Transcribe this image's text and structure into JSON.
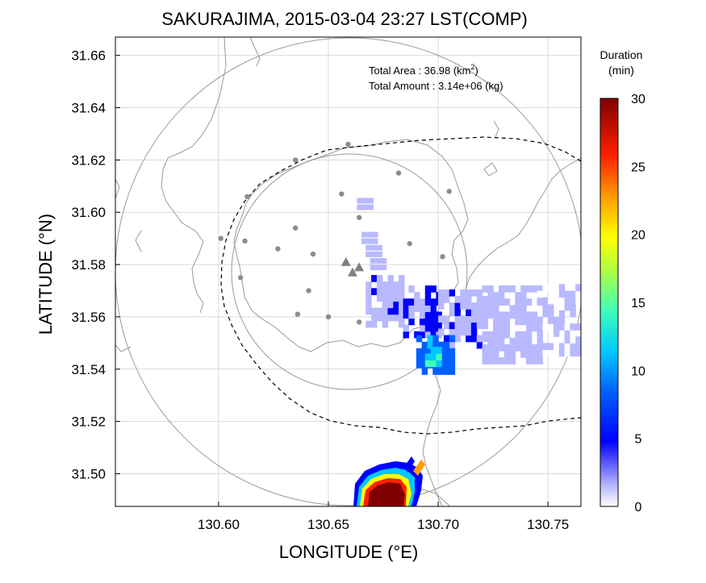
{
  "title": "SAKURAJIMA, 2015-03-04 23:27 LST(COMP)",
  "xlabel": "LONGITUDE (°E)",
  "ylabel": "LATITUDE (°N)",
  "annotation": {
    "area_label": "Total Area   : ",
    "area_value": "36.98",
    "area_unit_pre": " (km",
    "area_unit_sup": "2",
    "area_unit_post": ")",
    "amount_label": "Total Amount : ",
    "amount_value": "3.14e+06",
    "amount_unit": " (kg)"
  },
  "colorbar": {
    "title_line1": "Duration",
    "title_line2": "(min)",
    "min": 0,
    "max": 30,
    "ticks": [
      "0",
      "5",
      "10",
      "15",
      "20",
      "25",
      "30"
    ]
  },
  "colors": {
    "grid": "#d9d9d9",
    "coast": "#9a9a9a",
    "range_ring": "#9a9a9a",
    "station": "#8c8c8c"
  },
  "chart_data": {
    "type": "heatmap",
    "xlim": [
      130.553,
      130.765
    ],
    "ylim": [
      31.4875,
      31.667
    ],
    "x_ticks": [
      "130.60",
      "130.65",
      "130.70",
      "130.75"
    ],
    "x_tick_values": [
      130.6,
      130.65,
      130.7,
      130.75
    ],
    "y_ticks": [
      "31.50",
      "31.52",
      "31.54",
      "31.56",
      "31.58",
      "31.60",
      "31.62",
      "31.64",
      "31.66"
    ],
    "y_tick_values": [
      31.5,
      31.52,
      31.54,
      31.56,
      31.58,
      31.6,
      31.62,
      31.64,
      31.66
    ],
    "grid": true,
    "vents": [
      [
        130.658,
        31.581
      ],
      [
        130.661,
        31.577
      ],
      [
        130.664,
        31.579
      ]
    ],
    "stations": [
      [
        130.659,
        31.626
      ],
      [
        130.682,
        31.615
      ],
      [
        130.705,
        31.608
      ],
      [
        130.635,
        31.62
      ],
      [
        130.613,
        31.606
      ],
      [
        130.656,
        31.607
      ],
      [
        130.664,
        31.598
      ],
      [
        130.601,
        31.59
      ],
      [
        130.612,
        31.589
      ],
      [
        130.687,
        31.588
      ],
      [
        130.702,
        31.583
      ],
      [
        130.627,
        31.586
      ],
      [
        130.635,
        31.594
      ],
      [
        130.643,
        31.584
      ],
      [
        130.61,
        31.575
      ],
      [
        130.641,
        31.57
      ],
      [
        130.636,
        31.561
      ],
      [
        130.65,
        31.56
      ],
      [
        130.664,
        31.558
      ]
    ],
    "plume_cells_note": "duration in minutes per radar cell",
    "plume": [
      {
        "lon": [
          130.667,
          130.684
        ],
        "lat": [
          31.556,
          31.575
        ],
        "value": 4
      },
      {
        "lon": [
          130.684,
          130.7
        ],
        "lat": [
          31.552,
          31.571
        ],
        "value": 5
      },
      {
        "lon": [
          130.7,
          130.72
        ],
        "lat": [
          31.548,
          31.57
        ],
        "value": 4
      },
      {
        "lon": [
          130.72,
          130.745
        ],
        "lat": [
          31.542,
          31.571
        ],
        "value": 3
      },
      {
        "lon": [
          130.745,
          130.765
        ],
        "lat": [
          31.545,
          31.572
        ],
        "value": 2
      },
      {
        "lon": [
          130.69,
          130.705
        ],
        "lat": [
          31.538,
          31.552
        ],
        "value": 10
      },
      {
        "lon": [
          130.694,
          130.7
        ],
        "lat": [
          31.541,
          31.548
        ],
        "value": 14
      }
    ],
    "near_vent_max_value": 30
  }
}
